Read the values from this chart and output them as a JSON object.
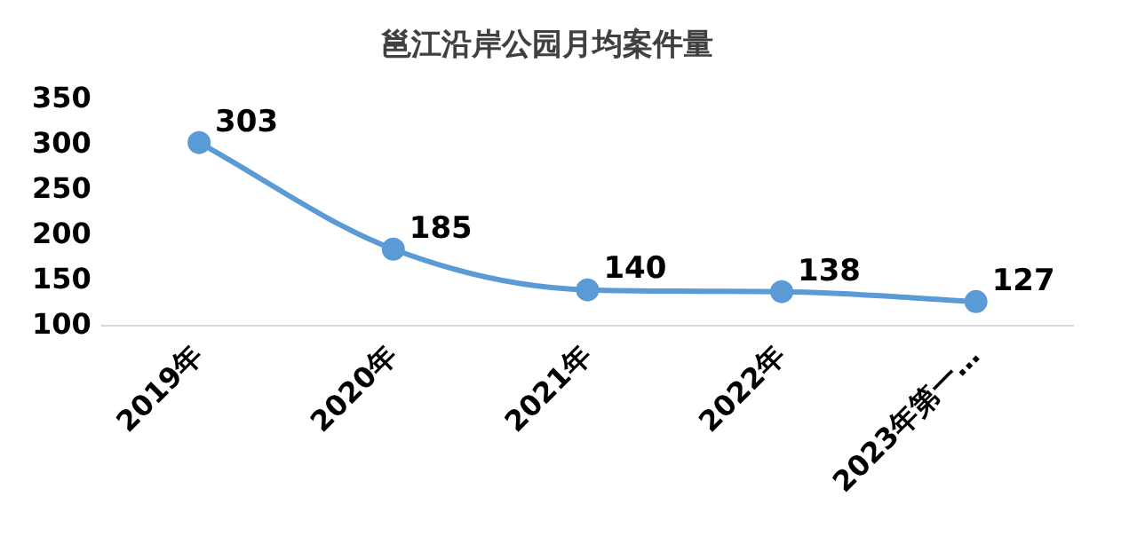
{
  "chart_data": {
    "type": "line",
    "title": "邕江沿岸公园月均案件量",
    "categories": [
      "2019年",
      "2020年",
      "2021年",
      "2022年",
      "2023年第一…"
    ],
    "series": [
      {
        "color": "#5b9bd5",
        "values": [
          303,
          185,
          140,
          138,
          127
        ]
      }
    ],
    "ylim": [
      100,
      350
    ],
    "yticks": [
      100,
      150,
      200,
      250,
      300,
      350
    ],
    "grid": false,
    "legend": false,
    "marker": "circle",
    "data_labels": true
  }
}
